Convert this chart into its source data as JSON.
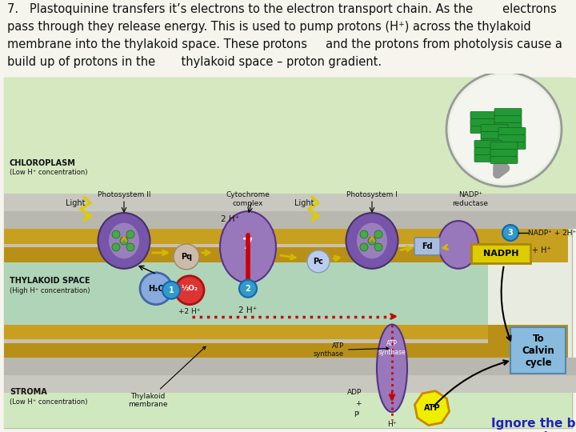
{
  "line1": "7.   Plastoquinine transfers it’s electrons to the electron transport chain. As the        electrons",
  "line2": "pass through they release energy. This is used to pump protons (H⁺) across the thylakoid",
  "line3": "membrane into the thylakoid space. These protons     and the protons from photolysis cause a",
  "line4": "build up of protons in the       thylakoid space – proton gradient.",
  "blue_label": "Ignore the blue\nnumbers",
  "blue_color": "#2222bb",
  "text_fontsize": 10.5,
  "bg_color": "#f5f5ee",
  "diagram_bg": "#e8ece0",
  "chloroplasm_color": "#d5e8c0",
  "thylakoid_space_color": "#b0d4b8",
  "membrane_color": "#c8a020",
  "membrane_color2": "#b89018",
  "stroma_color": "#d0e8c0",
  "purple_dark": "#7755aa",
  "purple_light": "#9980bb",
  "gray_membrane": "#b0b0b0",
  "yellow_arrow": "#d4b800",
  "red_arrow": "#cc0000",
  "text_black": "#111111"
}
